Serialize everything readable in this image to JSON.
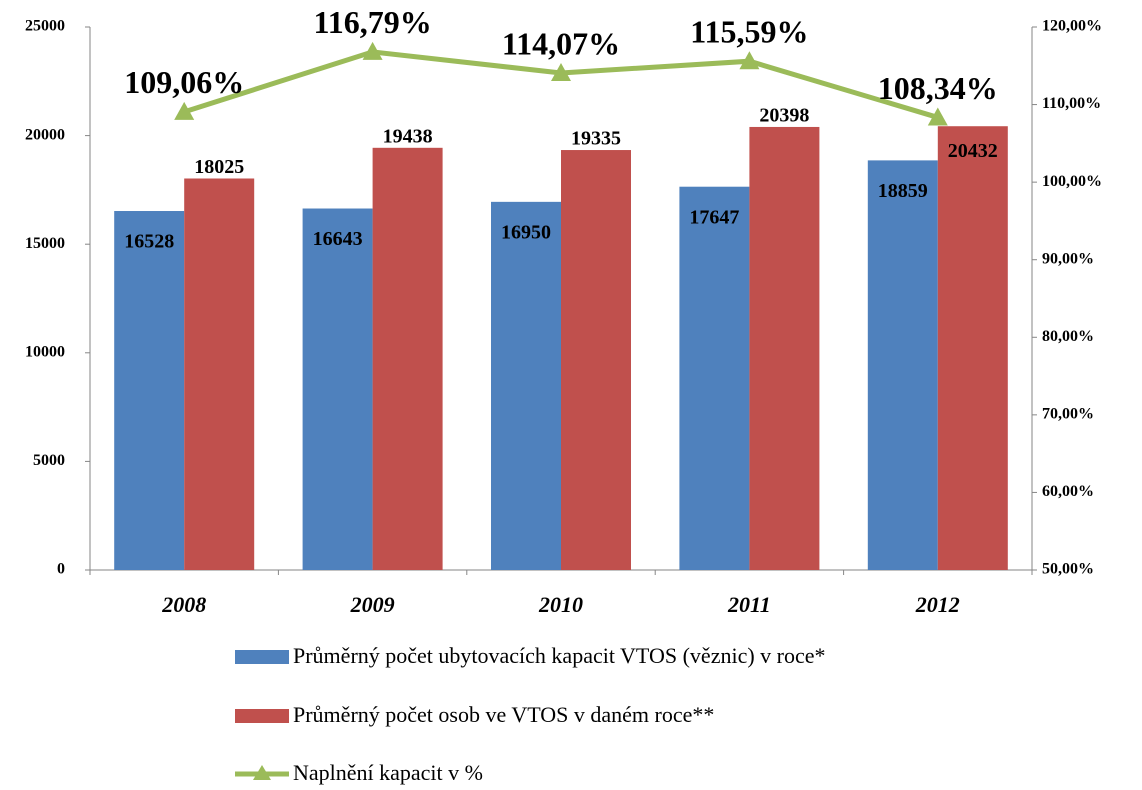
{
  "chart_data": {
    "type": "bar",
    "categories": [
      "2008",
      "2009",
      "2010",
      "2011",
      "2012"
    ],
    "series": [
      {
        "name": "Průměrný počet ubytovacích kapacit VTOS (věznic) v roce*",
        "color": "#4f81bd",
        "values": [
          16528,
          16643,
          16950,
          17647,
          18859
        ]
      },
      {
        "name": "Průměrný počet osob ve VTOS v daném roce**",
        "color": "#c0504d",
        "values": [
          18025,
          19438,
          19335,
          20398,
          20432
        ]
      },
      {
        "name": "Naplnění kapacit v %",
        "type": "line",
        "axis": "y2",
        "color": "#9bbb59",
        "values": [
          109.06,
          116.79,
          114.07,
          115.59,
          108.34
        ],
        "value_labels": [
          "109,06%",
          "116,79%",
          "114,07%",
          "115,59%",
          "108,34%"
        ]
      }
    ],
    "ylim": [
      0,
      25000
    ],
    "yticks": [
      0,
      5000,
      10000,
      15000,
      20000,
      25000
    ],
    "y2lim": [
      50,
      120
    ],
    "y2ticks": [
      {
        "value": 50,
        "label": "50,00%"
      },
      {
        "value": 60,
        "label": "60,00%"
      },
      {
        "value": 70,
        "label": "70,00%"
      },
      {
        "value": 80,
        "label": "80,00%"
      },
      {
        "value": 90,
        "label": "90,00%"
      },
      {
        "value": 100,
        "label": "100,00%"
      },
      {
        "value": 110,
        "label": "110,00%"
      },
      {
        "value": 120,
        "label": "120,00%"
      }
    ],
    "grid": false
  }
}
